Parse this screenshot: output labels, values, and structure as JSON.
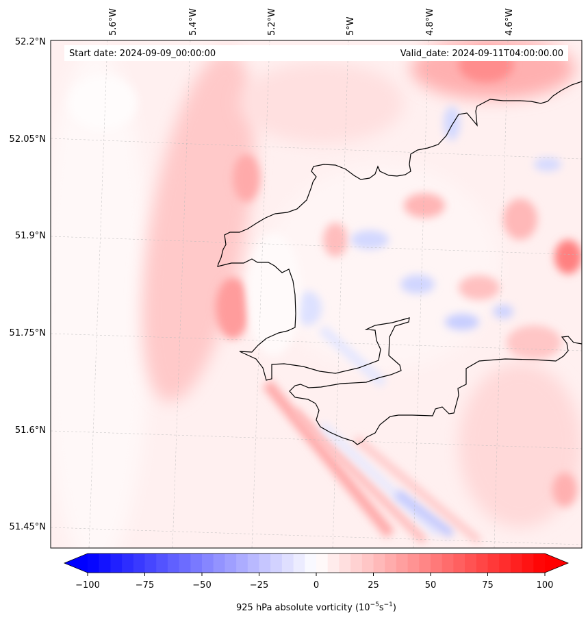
{
  "map": {
    "start_date": "Start date: 2024-09-09_00:00:00",
    "valid_date": "Valid_date: 2024-09-11T04:00:00.00",
    "longitude_labels": [
      "5.6°W",
      "5.4°W",
      "5.2°W",
      "5°W",
      "4.8°W",
      "4.6°W"
    ],
    "latitude_labels": [
      "52.2°N",
      "52.05°N",
      "51.9°N",
      "51.75°N",
      "51.6°N",
      "51.45°N"
    ],
    "colors": {
      "background": "#ffeeee",
      "coastline": "#000000",
      "gridline": "#bbbbbb",
      "positive": "#ff0000",
      "negative": "#0000ff",
      "zero": "#ffffff"
    }
  },
  "colorbar": {
    "min": -100,
    "max": 100,
    "step": 5,
    "ticks": [
      "−100",
      "−75",
      "−50",
      "−25",
      "0",
      "25",
      "50",
      "75",
      "100"
    ],
    "label_main": "925 hPa absolute vorticity (10",
    "label_exp1": "−5",
    "label_mid": "s",
    "label_exp2": "−1",
    "label_end": ")"
  }
}
